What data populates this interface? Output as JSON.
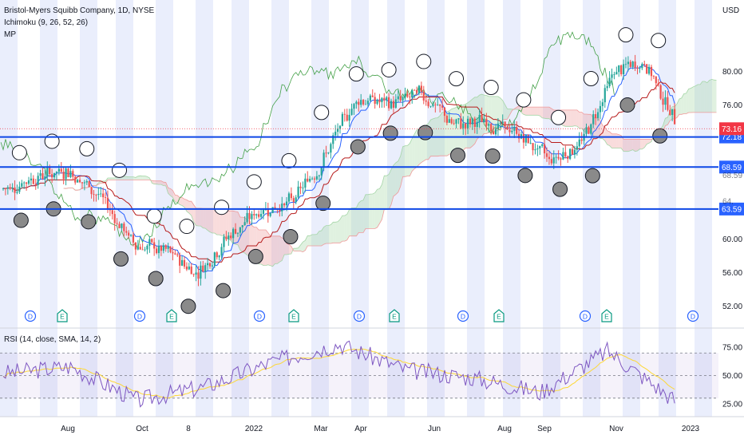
{
  "legend": {
    "symbol": "Bristol-Myers Squibb Company, 1D, NYSE",
    "ichimoku": "Ichimoku (9, 26, 52, 26)",
    "mp": "MP"
  },
  "rsi_legend": "RSI (14, close, SMA, 14, 2)",
  "currency": "USD",
  "colors": {
    "up": "#26a69a",
    "down": "#ef5350",
    "tenkan": "#2962ff",
    "kijun": "#b71c1c",
    "lagging": "#43a047",
    "cloud_up": "#a5d6a7",
    "cloud_down": "#ef9a9a",
    "level_line": "#0d47e6",
    "band": "#e3e8fb",
    "rsi": "#7e57c2",
    "rsi_ma": "#fdd835",
    "price_badge": "#f23645",
    "level_badge": "#2962ff"
  },
  "chart_data": [
    {
      "type": "candlestick",
      "title": "Bristol-Myers Squibb Company, 1D, NYSE",
      "y_unit": "USD",
      "ylim": [
        49.5,
        88.5
      ],
      "y_ticks": [
        52.0,
        56.0,
        60.0,
        68.59,
        72.18,
        73.16,
        76.0,
        80.0
      ],
      "x_ticks": [
        "Aug",
        "Oct",
        "8",
        "2022",
        "Mar",
        "Apr",
        "Jun",
        "Aug",
        "Sep",
        "Nov",
        "2023"
      ],
      "last_price": 73.16,
      "horizontal_levels": [
        72.18,
        68.59,
        63.59
      ],
      "level_labels": [
        "72.18",
        "68.59",
        "63.59"
      ],
      "partial_tick_labels": [
        "64.",
        "68.59"
      ],
      "price_path": [
        {
          "x": "Jun 2021",
          "y": 66.0
        },
        {
          "x": "Jul 2021",
          "y": 67.5
        },
        {
          "x": "Aug 2021",
          "y": 68.3
        },
        {
          "x": "Sep 2021",
          "y": 65.0
        },
        {
          "x": "Oct 2021",
          "y": 59.5
        },
        {
          "x": "Nov 2021",
          "y": 58.5
        },
        {
          "x": "Dec 2021",
          "y": 56.0
        },
        {
          "x": "Dec 2021",
          "y": 60.5
        },
        {
          "x": "Jan 2022",
          "y": 63.5
        },
        {
          "x": "Feb 2022",
          "y": 64.5
        },
        {
          "x": "Mar 2022",
          "y": 70.0
        },
        {
          "x": "Apr 2022",
          "y": 77.0
        },
        {
          "x": "May 2022",
          "y": 76.0
        },
        {
          "x": "Jun 2022",
          "y": 77.5
        },
        {
          "x": "Jun 2022",
          "y": 73.5
        },
        {
          "x": "Jul 2022",
          "y": 74.0
        },
        {
          "x": "Aug 2022",
          "y": 72.5
        },
        {
          "x": "Sep 2022",
          "y": 69.5
        },
        {
          "x": "Oct 2022",
          "y": 71.5
        },
        {
          "x": "Nov 2022",
          "y": 80.0
        },
        {
          "x": "Dec 2022",
          "y": 81.0
        },
        {
          "x": "Dec 2022",
          "y": 73.2
        }
      ],
      "event_markers": [
        {
          "letter": "D"
        },
        {
          "letter": "E"
        },
        {
          "letter": "D"
        },
        {
          "letter": "E"
        },
        {
          "letter": "D"
        },
        {
          "letter": "E"
        },
        {
          "letter": "D"
        },
        {
          "letter": "E"
        },
        {
          "letter": "D"
        },
        {
          "letter": "E"
        },
        {
          "letter": "D"
        },
        {
          "letter": "E"
        },
        {
          "letter": "D"
        }
      ]
    },
    {
      "type": "line",
      "title": "RSI (14, close, SMA, 14, 2)",
      "ylim": [
        15,
        90
      ],
      "y_ticks": [
        25.0,
        50.0,
        75.0
      ],
      "upper_band": 70,
      "lower_band": 30,
      "series": [
        {
          "name": "RSI",
          "x": [
            "Jun 2021",
            "Aug 2021",
            "Oct 2021",
            "Dec 2021",
            "Feb 2022",
            "Apr 2022",
            "Jun 2022",
            "Aug 2022",
            "Sep 2022",
            "Nov 2022",
            "Dec 2022"
          ],
          "values": [
            52,
            58,
            28,
            40,
            62,
            78,
            55,
            48,
            35,
            72,
            28
          ]
        }
      ]
    }
  ]
}
